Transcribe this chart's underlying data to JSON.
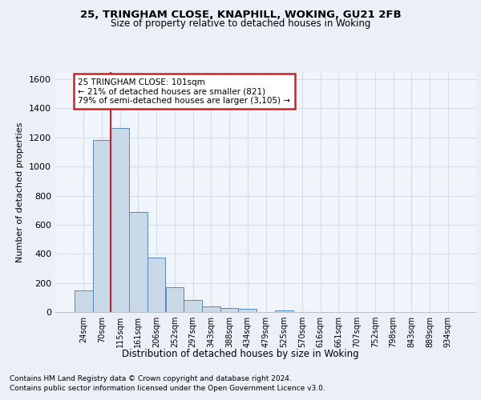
{
  "title1": "25, TRINGHAM CLOSE, KNAPHILL, WOKING, GU21 2FB",
  "title2": "Size of property relative to detached houses in Woking",
  "xlabel": "Distribution of detached houses by size in Woking",
  "ylabel": "Number of detached properties",
  "bin_labels": [
    "24sqm",
    "70sqm",
    "115sqm",
    "161sqm",
    "206sqm",
    "252sqm",
    "297sqm",
    "343sqm",
    "388sqm",
    "434sqm",
    "479sqm",
    "525sqm",
    "570sqm",
    "616sqm",
    "661sqm",
    "707sqm",
    "752sqm",
    "798sqm",
    "843sqm",
    "889sqm",
    "934sqm"
  ],
  "bar_values": [
    148,
    1185,
    1263,
    690,
    375,
    168,
    80,
    38,
    27,
    20,
    0,
    13,
    0,
    0,
    0,
    0,
    0,
    0,
    0,
    0,
    0
  ],
  "bar_color": "#c9d9e8",
  "bar_edge_color": "#5588bb",
  "highlight_color": "#cc2222",
  "vline_x": 1.5,
  "annotation_text": "25 TRINGHAM CLOSE: 101sqm\n← 21% of detached houses are smaller (821)\n79% of semi-detached houses are larger (3,105) →",
  "annotation_box_color": "#ffffff",
  "annotation_border_color": "#cc2222",
  "ylim": [
    0,
    1650
  ],
  "yticks": [
    0,
    200,
    400,
    600,
    800,
    1000,
    1200,
    1400,
    1600
  ],
  "footer1": "Contains HM Land Registry data © Crown copyright and database right 2024.",
  "footer2": "Contains public sector information licensed under the Open Government Licence v3.0.",
  "bg_color": "#eaeff8",
  "plot_bg_color": "#f0f4fb",
  "grid_color": "#d8dce8"
}
